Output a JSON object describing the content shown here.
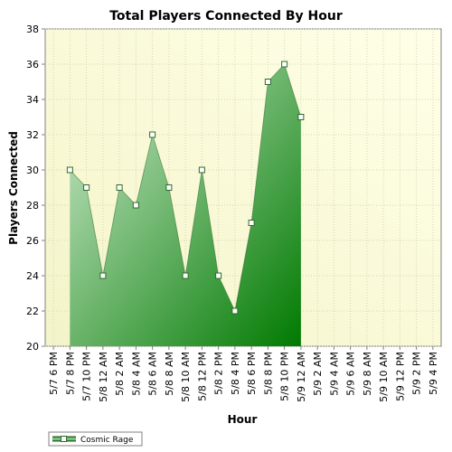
{
  "chart_data": {
    "type": "area",
    "title": "Total Players Connected By Hour",
    "xlabel": "Hour",
    "ylabel": "Players Connected",
    "categories": [
      "5/7 6 PM",
      "5/7 8 PM",
      "5/7 10 PM",
      "5/8 12 AM",
      "5/8 2 AM",
      "5/8 4 AM",
      "5/8 6 AM",
      "5/8 8 AM",
      "5/8 10 AM",
      "5/8 12 PM",
      "5/8 2 PM",
      "5/8 4 PM",
      "5/8 6 PM",
      "5/8 8 PM",
      "5/8 10 PM",
      "5/9 12 AM",
      "5/9 2 AM",
      "5/9 4 AM",
      "5/9 6 AM",
      "5/9 8 AM",
      "5/9 10 AM",
      "5/9 12 PM",
      "5/9 2 PM",
      "5/9 4 PM"
    ],
    "series": [
      {
        "name": "Cosmic Rage",
        "points": [
          {
            "x": "5/7 8 PM",
            "y": 30
          },
          {
            "x": "5/7 10 PM",
            "y": 29
          },
          {
            "x": "5/8 12 AM",
            "y": 24
          },
          {
            "x": "5/8 2 AM",
            "y": 29
          },
          {
            "x": "5/8 4 AM",
            "y": 28
          },
          {
            "x": "5/8 6 AM",
            "y": 32
          },
          {
            "x": "5/8 8 AM",
            "y": 29
          },
          {
            "x": "5/8 10 AM",
            "y": 24
          },
          {
            "x": "5/8 12 PM",
            "y": 30
          },
          {
            "x": "5/8 2 PM",
            "y": 24
          },
          {
            "x": "5/8 4 PM",
            "y": 22
          },
          {
            "x": "5/8 6 PM",
            "y": 27
          },
          {
            "x": "5/8 8 PM",
            "y": 35
          },
          {
            "x": "5/8 10 PM",
            "y": 36
          },
          {
            "x": "5/9 12 AM",
            "y": 33
          }
        ]
      }
    ],
    "yticks": [
      20,
      22,
      24,
      26,
      28,
      30,
      32,
      34,
      36,
      38
    ],
    "ylim": [
      20,
      38
    ],
    "grid": true,
    "legend": "bottom-left",
    "colors": {
      "plot_bg_light": "#ffffe6",
      "plot_bg_mid": "#fdfdd8",
      "fill_light": "#c7e6c7",
      "fill_dark": "#008000",
      "line": "#2e6b2e",
      "grid": "#d6d6b8",
      "axis": "#808080"
    }
  }
}
